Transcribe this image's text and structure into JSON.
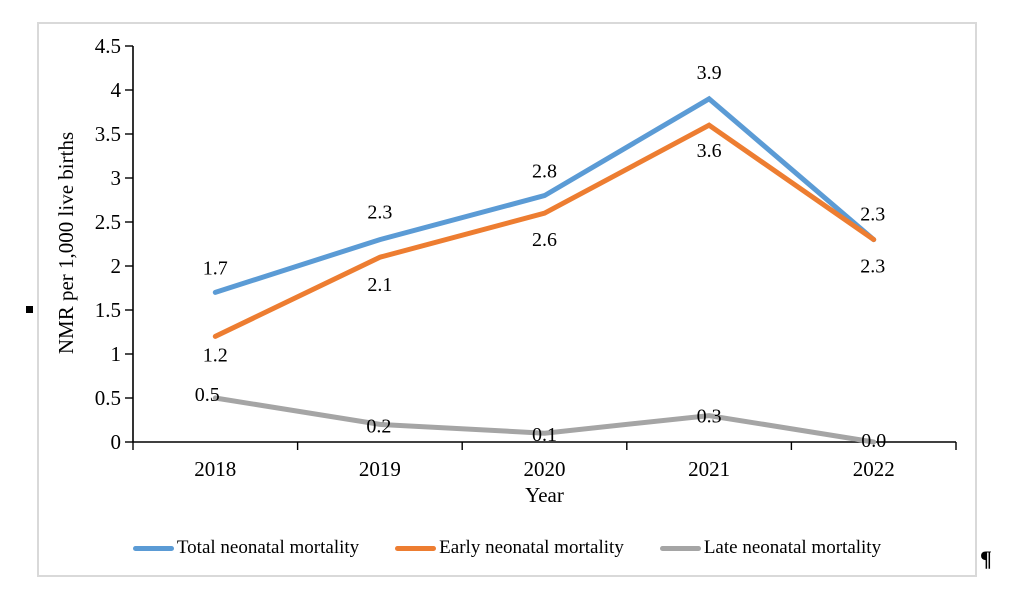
{
  "page": {
    "paragraph_mark": "¶"
  },
  "chart_data": {
    "type": "line",
    "title": "",
    "categories": [
      "2018",
      "2019",
      "2020",
      "2021",
      "2022"
    ],
    "series": [
      {
        "name": "Total neonatal mortality",
        "color": "#5B9BD5",
        "values": [
          1.7,
          2.3,
          2.8,
          3.9,
          2.3
        ],
        "label_placement": "above"
      },
      {
        "name": "Early neonatal mortality",
        "color": "#ED7D31",
        "values": [
          1.2,
          2.1,
          2.6,
          3.6,
          2.3
        ],
        "label_placement": "below"
      },
      {
        "name": "Late neonatal mortality",
        "color": "#A5A5A5",
        "values": [
          0.5,
          0.2,
          0.1,
          0.3,
          0.0
        ],
        "label_placement": "on-line"
      }
    ],
    "xlabel": "Year",
    "ylabel": "NMR per 1,000 live births",
    "ylim": [
      0,
      4.5
    ],
    "yticks": [
      "0",
      "0.5",
      "1",
      "1.5",
      "2",
      "2.5",
      "3",
      "3.5",
      "4",
      "4.5"
    ],
    "grid": false,
    "data_labels": true,
    "label_decimals": 1,
    "legend_position": "bottom",
    "axis_color": "#000000",
    "frame_border_color": "#D9D9D9"
  }
}
